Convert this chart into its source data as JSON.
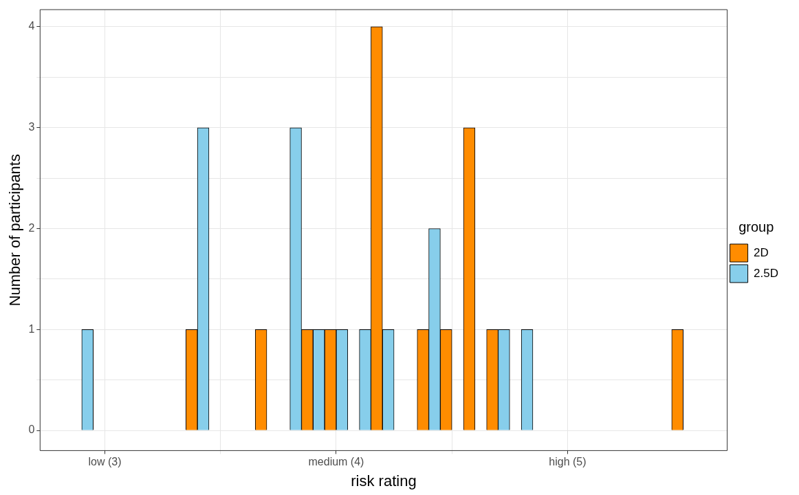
{
  "chart_data": {
    "type": "histogram",
    "xlabel": "risk rating",
    "ylabel": "Number of participants",
    "legend_title": "group",
    "legend": "right",
    "grid": true,
    "bins": [
      2.85,
      2.95,
      3.05,
      3.15,
      3.25,
      3.35,
      3.45,
      3.55,
      3.65,
      3.75,
      3.85,
      3.95,
      4.05,
      4.15,
      4.25,
      4.35,
      4.45,
      4.55,
      4.65,
      4.75,
      4.85,
      4.95,
      5.05,
      5.15,
      5.25,
      5.35,
      5.45,
      5.55
    ],
    "series": [
      {
        "name": "2D",
        "color": "#ff8c00",
        "values": [
          0,
          0,
          0,
          0,
          0,
          1,
          0,
          0,
          1,
          0,
          1,
          1,
          0,
          4,
          0,
          1,
          1,
          3,
          1,
          0,
          0,
          0,
          0,
          0,
          0,
          0,
          1
        ]
      },
      {
        "name": "2.5D",
        "color": "#87ceeb",
        "values": [
          1,
          0,
          0,
          0,
          0,
          3,
          0,
          0,
          0,
          3,
          1,
          1,
          1,
          1,
          0,
          2,
          0,
          0,
          1,
          1,
          0,
          0,
          0,
          0,
          0,
          0,
          0
        ]
      }
    ],
    "xlim": [
      2.72,
      5.69
    ],
    "xticks": [
      {
        "value": 3,
        "label": "low (3)"
      },
      {
        "value": 3.5,
        "label": null
      },
      {
        "value": 4,
        "label": "medium (4)"
      },
      {
        "value": 4.5,
        "label": null
      },
      {
        "value": 5,
        "label": "high (5)"
      }
    ],
    "ylim": [
      -0.2,
      4.17
    ],
    "yticks": [
      0,
      {
        "value": 0.5,
        "label": null
      },
      1,
      {
        "value": 1.5,
        "label": null
      },
      2,
      {
        "value": 2.5,
        "label": null
      },
      3,
      {
        "value": 3.5,
        "label": null
      },
      4
    ]
  }
}
